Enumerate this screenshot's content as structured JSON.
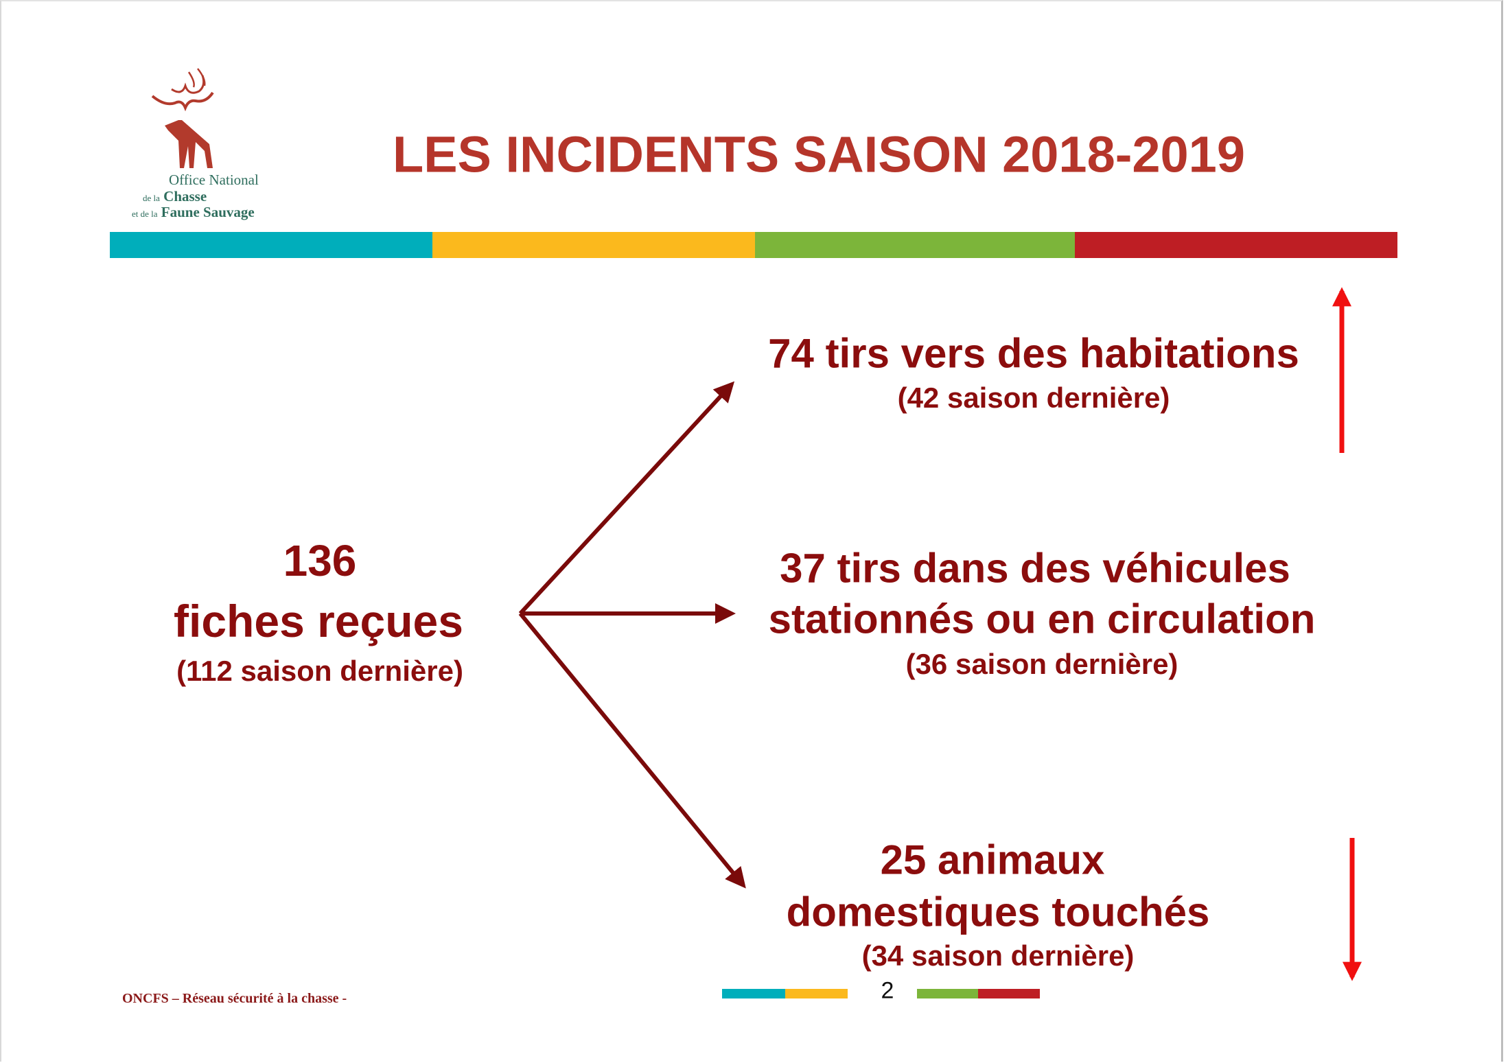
{
  "logo": {
    "line1": "Office National",
    "line2_prefix": "de la",
    "line2": "Chasse",
    "line3_prefix": "et de la",
    "line3": "Faune Sauvage"
  },
  "title": "LES INCIDENTS SAISON 2018-2019",
  "colors": {
    "teal": "#00aebb",
    "yellow": "#fbb91d",
    "green": "#7cb53a",
    "red": "#be1e24",
    "text": "#8b0d0d",
    "arrow": "#7a0a0a",
    "trend": "#f01010"
  },
  "total": {
    "number": "136",
    "label": "fiches reçues",
    "previous": "(112 saison dernière)"
  },
  "items": [
    {
      "lines": [
        "74 tirs vers des habitations"
      ],
      "previous": "(42 saison dernière)",
      "trend": "up"
    },
    {
      "lines": [
        "37 tirs dans des véhicules",
        "stationnés ou en circulation"
      ],
      "previous": "(36 saison dernière)",
      "trend": "none"
    },
    {
      "lines": [
        "25 animaux",
        "domestiques touchés"
      ],
      "previous": "(34 saison dernière)",
      "trend": "down"
    }
  ],
  "footer": {
    "text": "ONCFS – Réseau sécurité à la chasse -",
    "page": "2"
  }
}
